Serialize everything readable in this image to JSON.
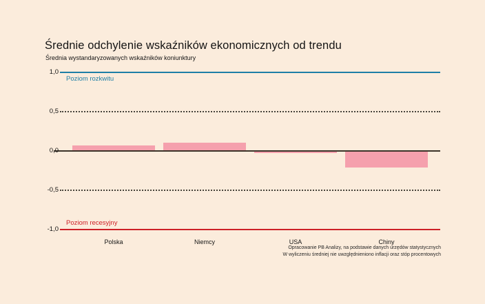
{
  "page": {
    "background_color": "#fbecdc"
  },
  "chart_data": {
    "type": "bar",
    "title": "Średnie odchylenie wskaźników ekonomicznych od trendu",
    "subtitle": "Średnia wystandaryzowanych wskaźników koniunktury",
    "categories": [
      "Polska",
      "Niemcy",
      "USA",
      "Chiny"
    ],
    "values": [
      0.06,
      0.1,
      -0.02,
      -0.2
    ],
    "bar_color": "#f5a0ad",
    "ylim": [
      -1.0,
      1.0
    ],
    "legend_position": "none",
    "grid": "dotted horizontal lines at 0.5 and -0.5",
    "yticks": [
      {
        "label": "1,0",
        "value": 1.0,
        "line": "solid",
        "color": "#1d7ea6"
      },
      {
        "label": "0,5",
        "value": 0.5,
        "line": "dotted",
        "color": "#46423a"
      },
      {
        "label": "0,0",
        "value": 0.0,
        "line": "solid",
        "color": "#3a3228"
      },
      {
        "label": "-0,5",
        "value": -0.5,
        "line": "dotted",
        "color": "#46423a"
      },
      {
        "label": "-1,0",
        "value": -1.0,
        "line": "solid",
        "color": "#cd2026"
      }
    ],
    "reference_labels": [
      {
        "text": "Poziom rozkwitu",
        "value": 1.0,
        "color": "#1d7ea6",
        "placement": "below-line"
      },
      {
        "text": "Poziom recesyjny",
        "value": -1.0,
        "color": "#cd2026",
        "placement": "above-line"
      }
    ],
    "source_note": [
      "Opracowanie PB Analizy, na podstawie danych urzędów statystycznych",
      "W wyliczeniu średniej nie uwzględnieniono inflacji oraz stóp procentowych"
    ]
  }
}
